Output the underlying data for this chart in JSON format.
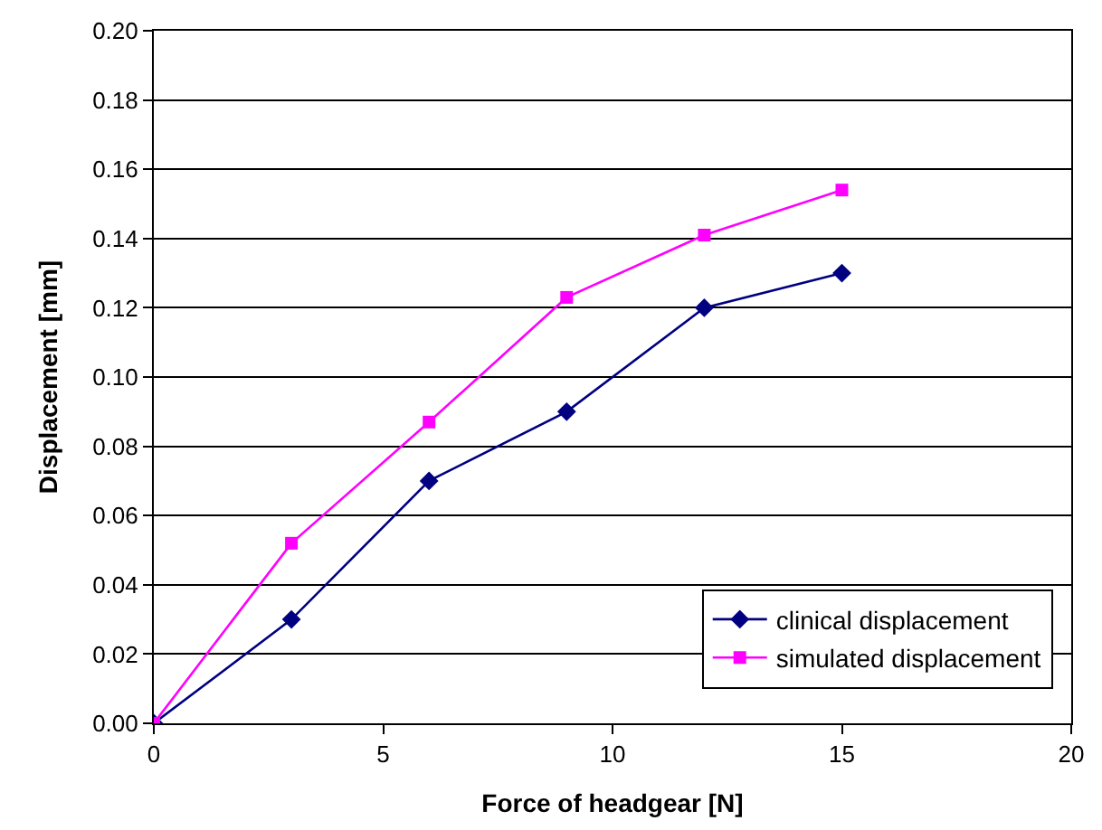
{
  "chart_data": {
    "type": "line",
    "xlabel": "Force of headgear [N]",
    "ylabel": "Displacement [mm]",
    "x": [
      0,
      3,
      6,
      9,
      12,
      15
    ],
    "series": [
      {
        "name": "clinical displacement",
        "color": "#000080",
        "marker": "diamond",
        "values": [
          0,
          0.03,
          0.07,
          0.09,
          0.12,
          0.13
        ]
      },
      {
        "name": "simulated displacement",
        "color": "#ff00ff",
        "marker": "square",
        "values": [
          0,
          0.052,
          0.087,
          0.123,
          0.141,
          0.154
        ]
      }
    ],
    "xlim": [
      0,
      20
    ],
    "xticks": [
      0,
      5,
      10,
      15,
      20
    ],
    "ylim": [
      0,
      0.2
    ],
    "yticks": [
      {
        "value": 0,
        "label": "0.00"
      },
      {
        "value": 0.02,
        "label": "0.02"
      },
      {
        "value": 0.04,
        "label": "0.04"
      },
      {
        "value": 0.06,
        "label": "0.06"
      },
      {
        "value": 0.08,
        "label": "0.08"
      },
      {
        "value": 0.1,
        "label": "0.10"
      },
      {
        "value": 0.12,
        "label": "0.12"
      },
      {
        "value": 0.14,
        "label": "0.14"
      },
      {
        "value": 0.16,
        "label": "0.16"
      },
      {
        "value": 0.18,
        "label": "0.18"
      },
      {
        "value": 0.2,
        "label": "0.20"
      }
    ],
    "grid": "y",
    "legend": "bottom right",
    "line_style": "solid"
  }
}
